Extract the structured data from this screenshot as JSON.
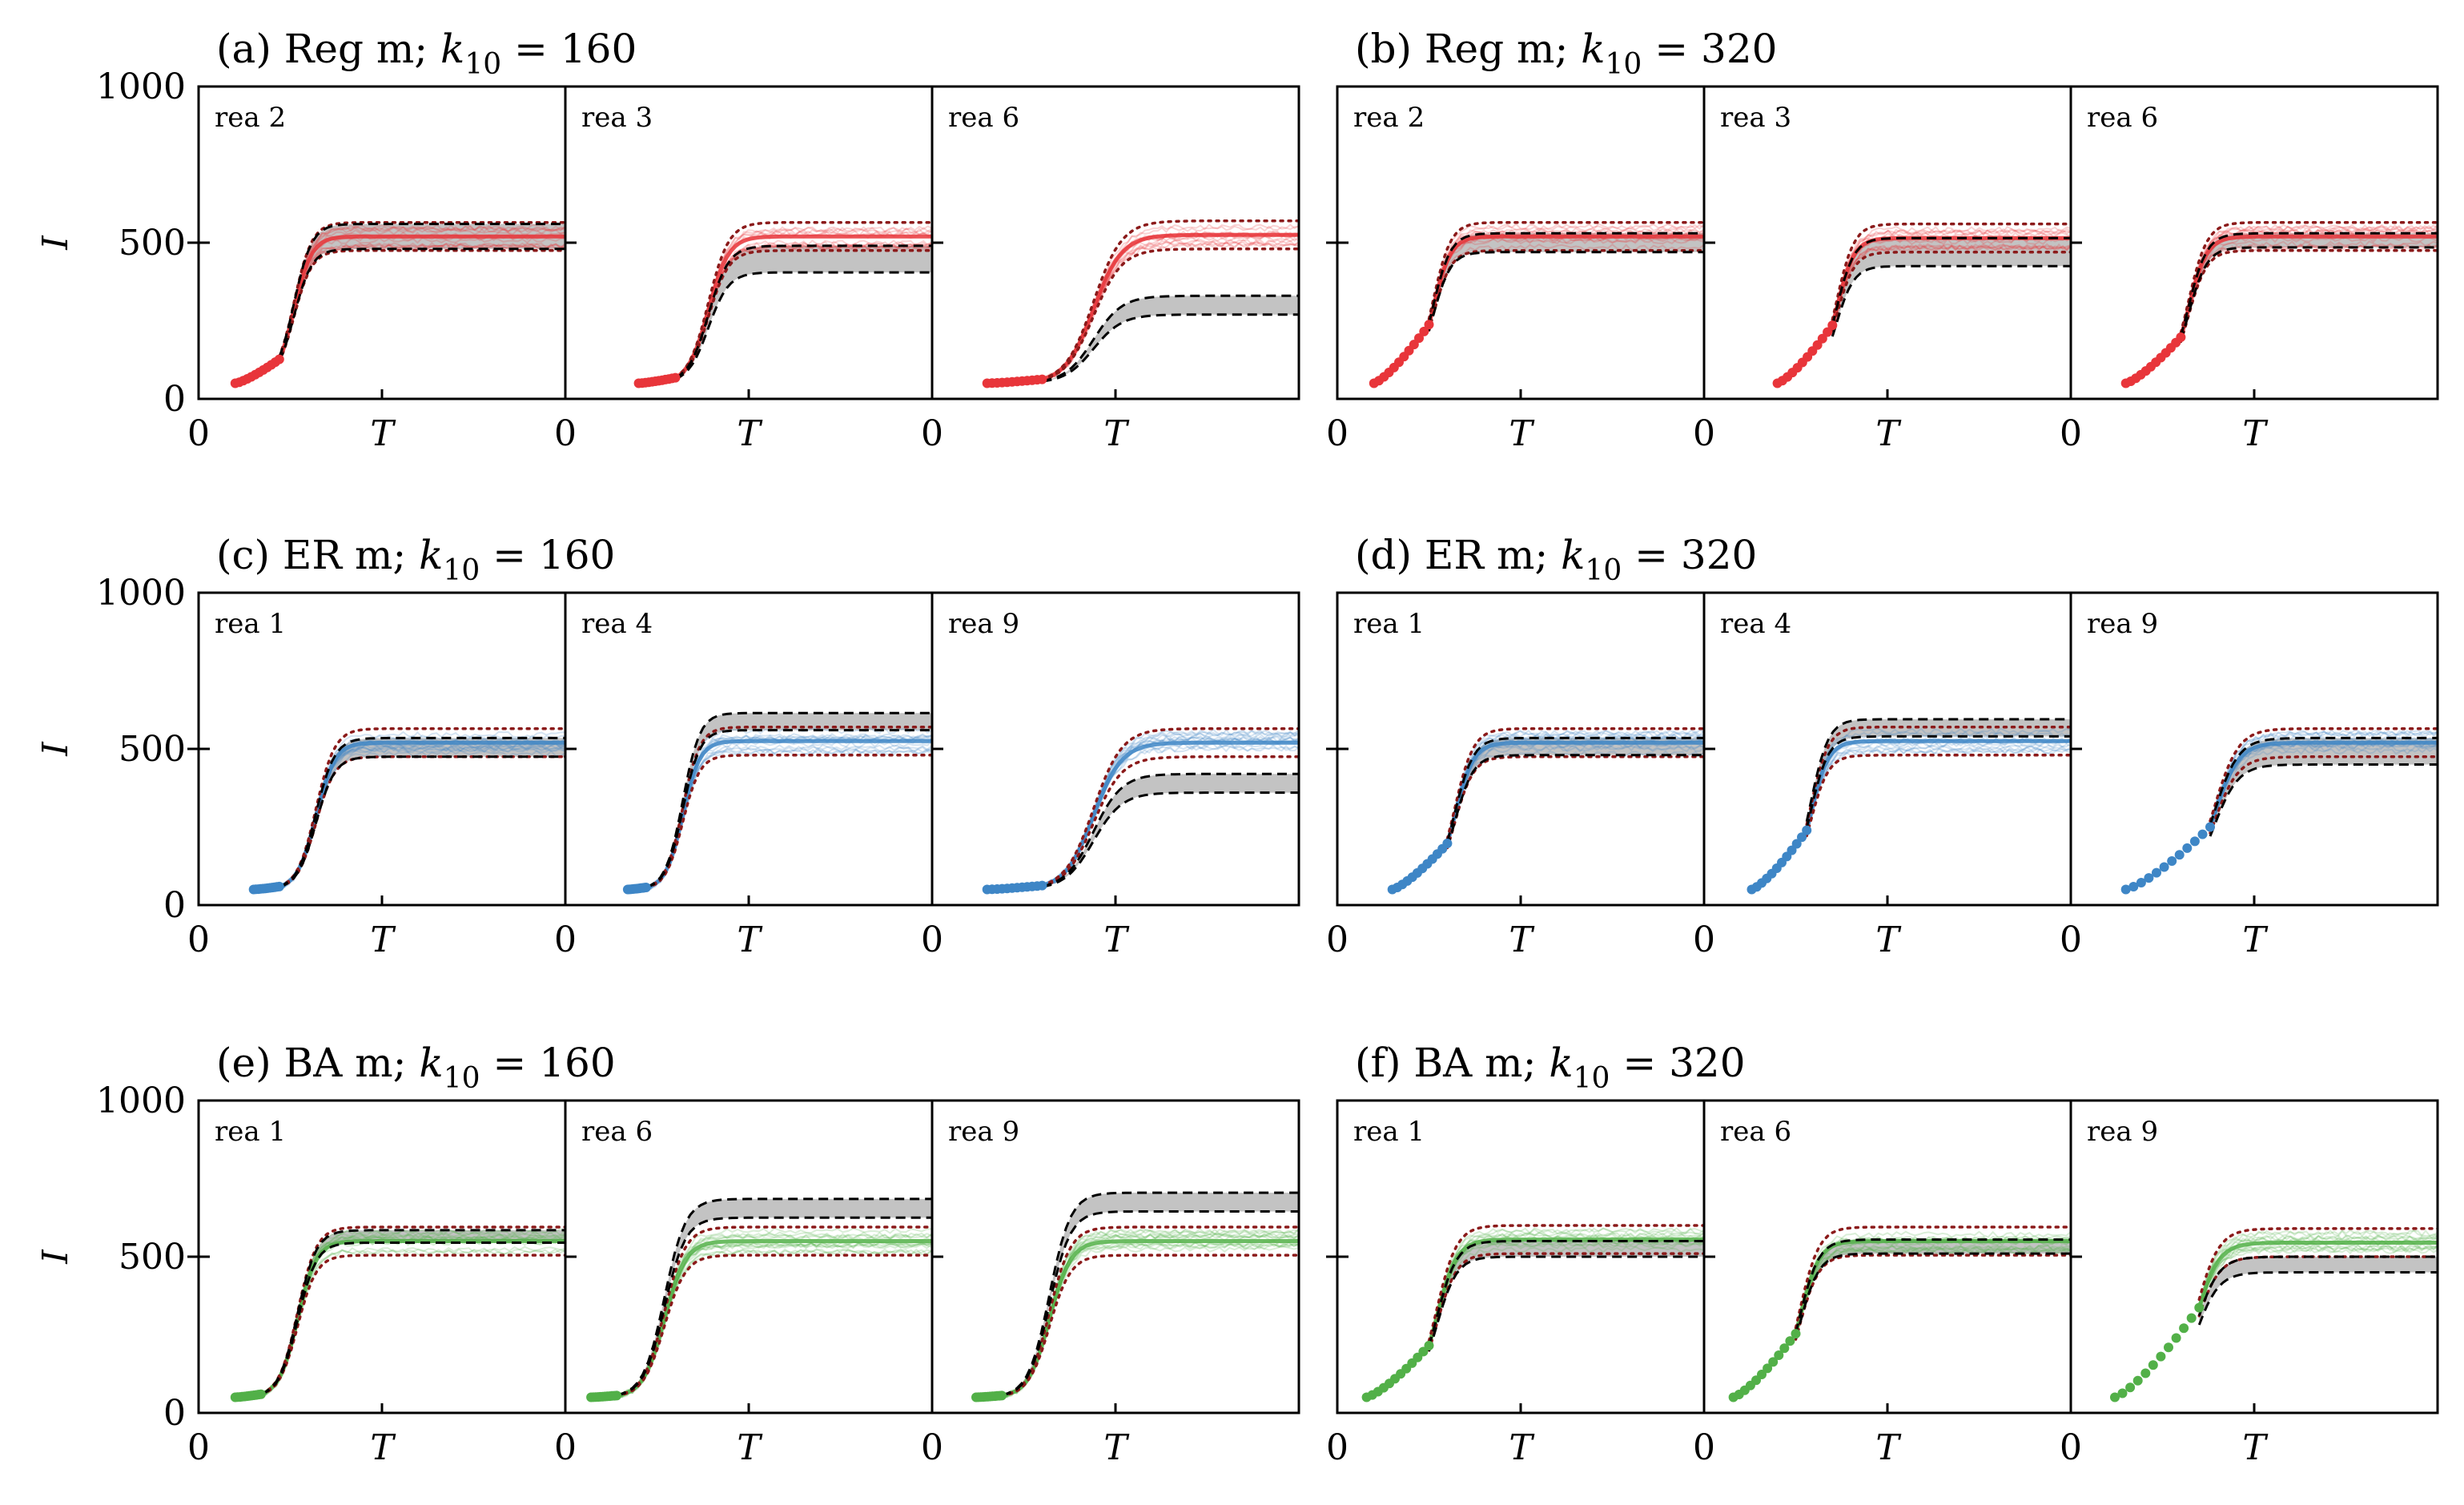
{
  "figure": {
    "y_label": "I",
    "x_label": "T",
    "y_ticks": [
      "0",
      "500",
      "1000"
    ],
    "x_tick_zero": "0",
    "colors": {
      "red": "#e8353a",
      "blue": "#3e86c6",
      "green": "#52b048",
      "band": "#bdbdbd",
      "bound": "#8b1a1a",
      "dash": "#000000"
    }
  },
  "chart_data": [
    {
      "id": "a",
      "type": "line",
      "title_prefix": "(a) Reg m; ",
      "k_sym": "k",
      "k_sub": "10",
      "title_value": " = 160",
      "color": "red",
      "k": 160,
      "ylim": [
        0,
        1000
      ],
      "panels": [
        {
          "label": "rea 2",
          "t0": 0.1,
          "onset": 0.22,
          "plateau": 520,
          "gray": [
            480,
            560
          ],
          "mid": 0.32
        },
        {
          "label": "rea 3",
          "t0": 0.2,
          "onset": 0.3,
          "plateau": 520,
          "gray": [
            405,
            490
          ],
          "mid": 0.45
        },
        {
          "label": "rea 6",
          "t0": 0.15,
          "onset": 0.3,
          "plateau": 525,
          "gray": [
            270,
            330
          ],
          "mid": 0.5
        }
      ]
    },
    {
      "id": "b",
      "type": "line",
      "title_prefix": "(b) Reg m; ",
      "k_sym": "k",
      "k_sub": "10",
      "title_value": " = 320",
      "color": "red",
      "k": 320,
      "ylim": [
        0,
        1000
      ],
      "panels": [
        {
          "label": "rea 2",
          "t0": 0.1,
          "onset": 0.25,
          "plateau": 520,
          "gray": [
            470,
            530
          ],
          "mid": 0.32
        },
        {
          "label": "rea 3",
          "t0": 0.2,
          "onset": 0.35,
          "plateau": 515,
          "gray": [
            425,
            515
          ],
          "mid": 0.42
        },
        {
          "label": "rea 6",
          "t0": 0.15,
          "onset": 0.3,
          "plateau": 520,
          "gray": [
            485,
            530
          ],
          "mid": 0.38
        }
      ]
    },
    {
      "id": "c",
      "type": "line",
      "title_prefix": "(c) ER m; ",
      "k_sym": "k",
      "k_sub": "10",
      "title_value": " = 160",
      "color": "blue",
      "k": 160,
      "ylim": [
        0,
        1000
      ],
      "panels": [
        {
          "label": "rea 1",
          "t0": 0.15,
          "onset": 0.22,
          "plateau": 520,
          "gray": [
            475,
            535
          ],
          "mid": 0.38
        },
        {
          "label": "rea 4",
          "t0": 0.17,
          "onset": 0.22,
          "plateau": 525,
          "gray": [
            560,
            615
          ],
          "mid": 0.38
        },
        {
          "label": "rea 9",
          "t0": 0.15,
          "onset": 0.3,
          "plateau": 520,
          "gray": [
            360,
            420
          ],
          "mid": 0.5
        }
      ]
    },
    {
      "id": "d",
      "type": "line",
      "title_prefix": "(d) ER m; ",
      "k_sym": "k",
      "k_sub": "10",
      "title_value": " = 320",
      "color": "blue",
      "k": 320,
      "ylim": [
        0,
        1000
      ],
      "panels": [
        {
          "label": "rea 1",
          "t0": 0.15,
          "onset": 0.3,
          "plateau": 520,
          "gray": [
            480,
            535
          ],
          "mid": 0.38
        },
        {
          "label": "rea 4",
          "t0": 0.13,
          "onset": 0.28,
          "plateau": 525,
          "gray": [
            540,
            595
          ],
          "mid": 0.35
        },
        {
          "label": "rea 9",
          "t0": 0.15,
          "onset": 0.38,
          "plateau": 520,
          "gray": [
            450,
            535
          ],
          "mid": 0.45
        }
      ]
    },
    {
      "id": "e",
      "type": "line",
      "title_prefix": "(e) BA m; ",
      "k_sym": "k",
      "k_sub": "10",
      "title_value": " = 160",
      "color": "green",
      "k": 160,
      "ylim": [
        0,
        1000
      ],
      "panels": [
        {
          "label": "rea 1",
          "t0": 0.1,
          "onset": 0.17,
          "plateau": 550,
          "gray": [
            545,
            585
          ],
          "mid": 0.33
        },
        {
          "label": "rea 6",
          "t0": 0.07,
          "onset": 0.14,
          "plateau": 550,
          "gray": [
            625,
            685
          ],
          "mid": 0.33
        },
        {
          "label": "rea 9",
          "t0": 0.12,
          "onset": 0.19,
          "plateau": 550,
          "gray": [
            645,
            705
          ],
          "mid": 0.38
        }
      ]
    },
    {
      "id": "f",
      "type": "line",
      "title_prefix": "(f) BA m; ",
      "k_sym": "k",
      "k_sub": "10",
      "title_value": " = 320",
      "color": "green",
      "k": 320,
      "ylim": [
        0,
        1000
      ],
      "panels": [
        {
          "label": "rea 1",
          "t0": 0.08,
          "onset": 0.25,
          "plateau": 555,
          "gray": [
            500,
            550
          ],
          "mid": 0.33
        },
        {
          "label": "rea 6",
          "t0": 0.08,
          "onset": 0.25,
          "plateau": 550,
          "gray": [
            510,
            555
          ],
          "mid": 0.32
        },
        {
          "label": "rea 9",
          "t0": 0.12,
          "onset": 0.35,
          "plateau": 545,
          "gray": [
            450,
            500
          ],
          "mid": 0.4
        }
      ]
    }
  ]
}
